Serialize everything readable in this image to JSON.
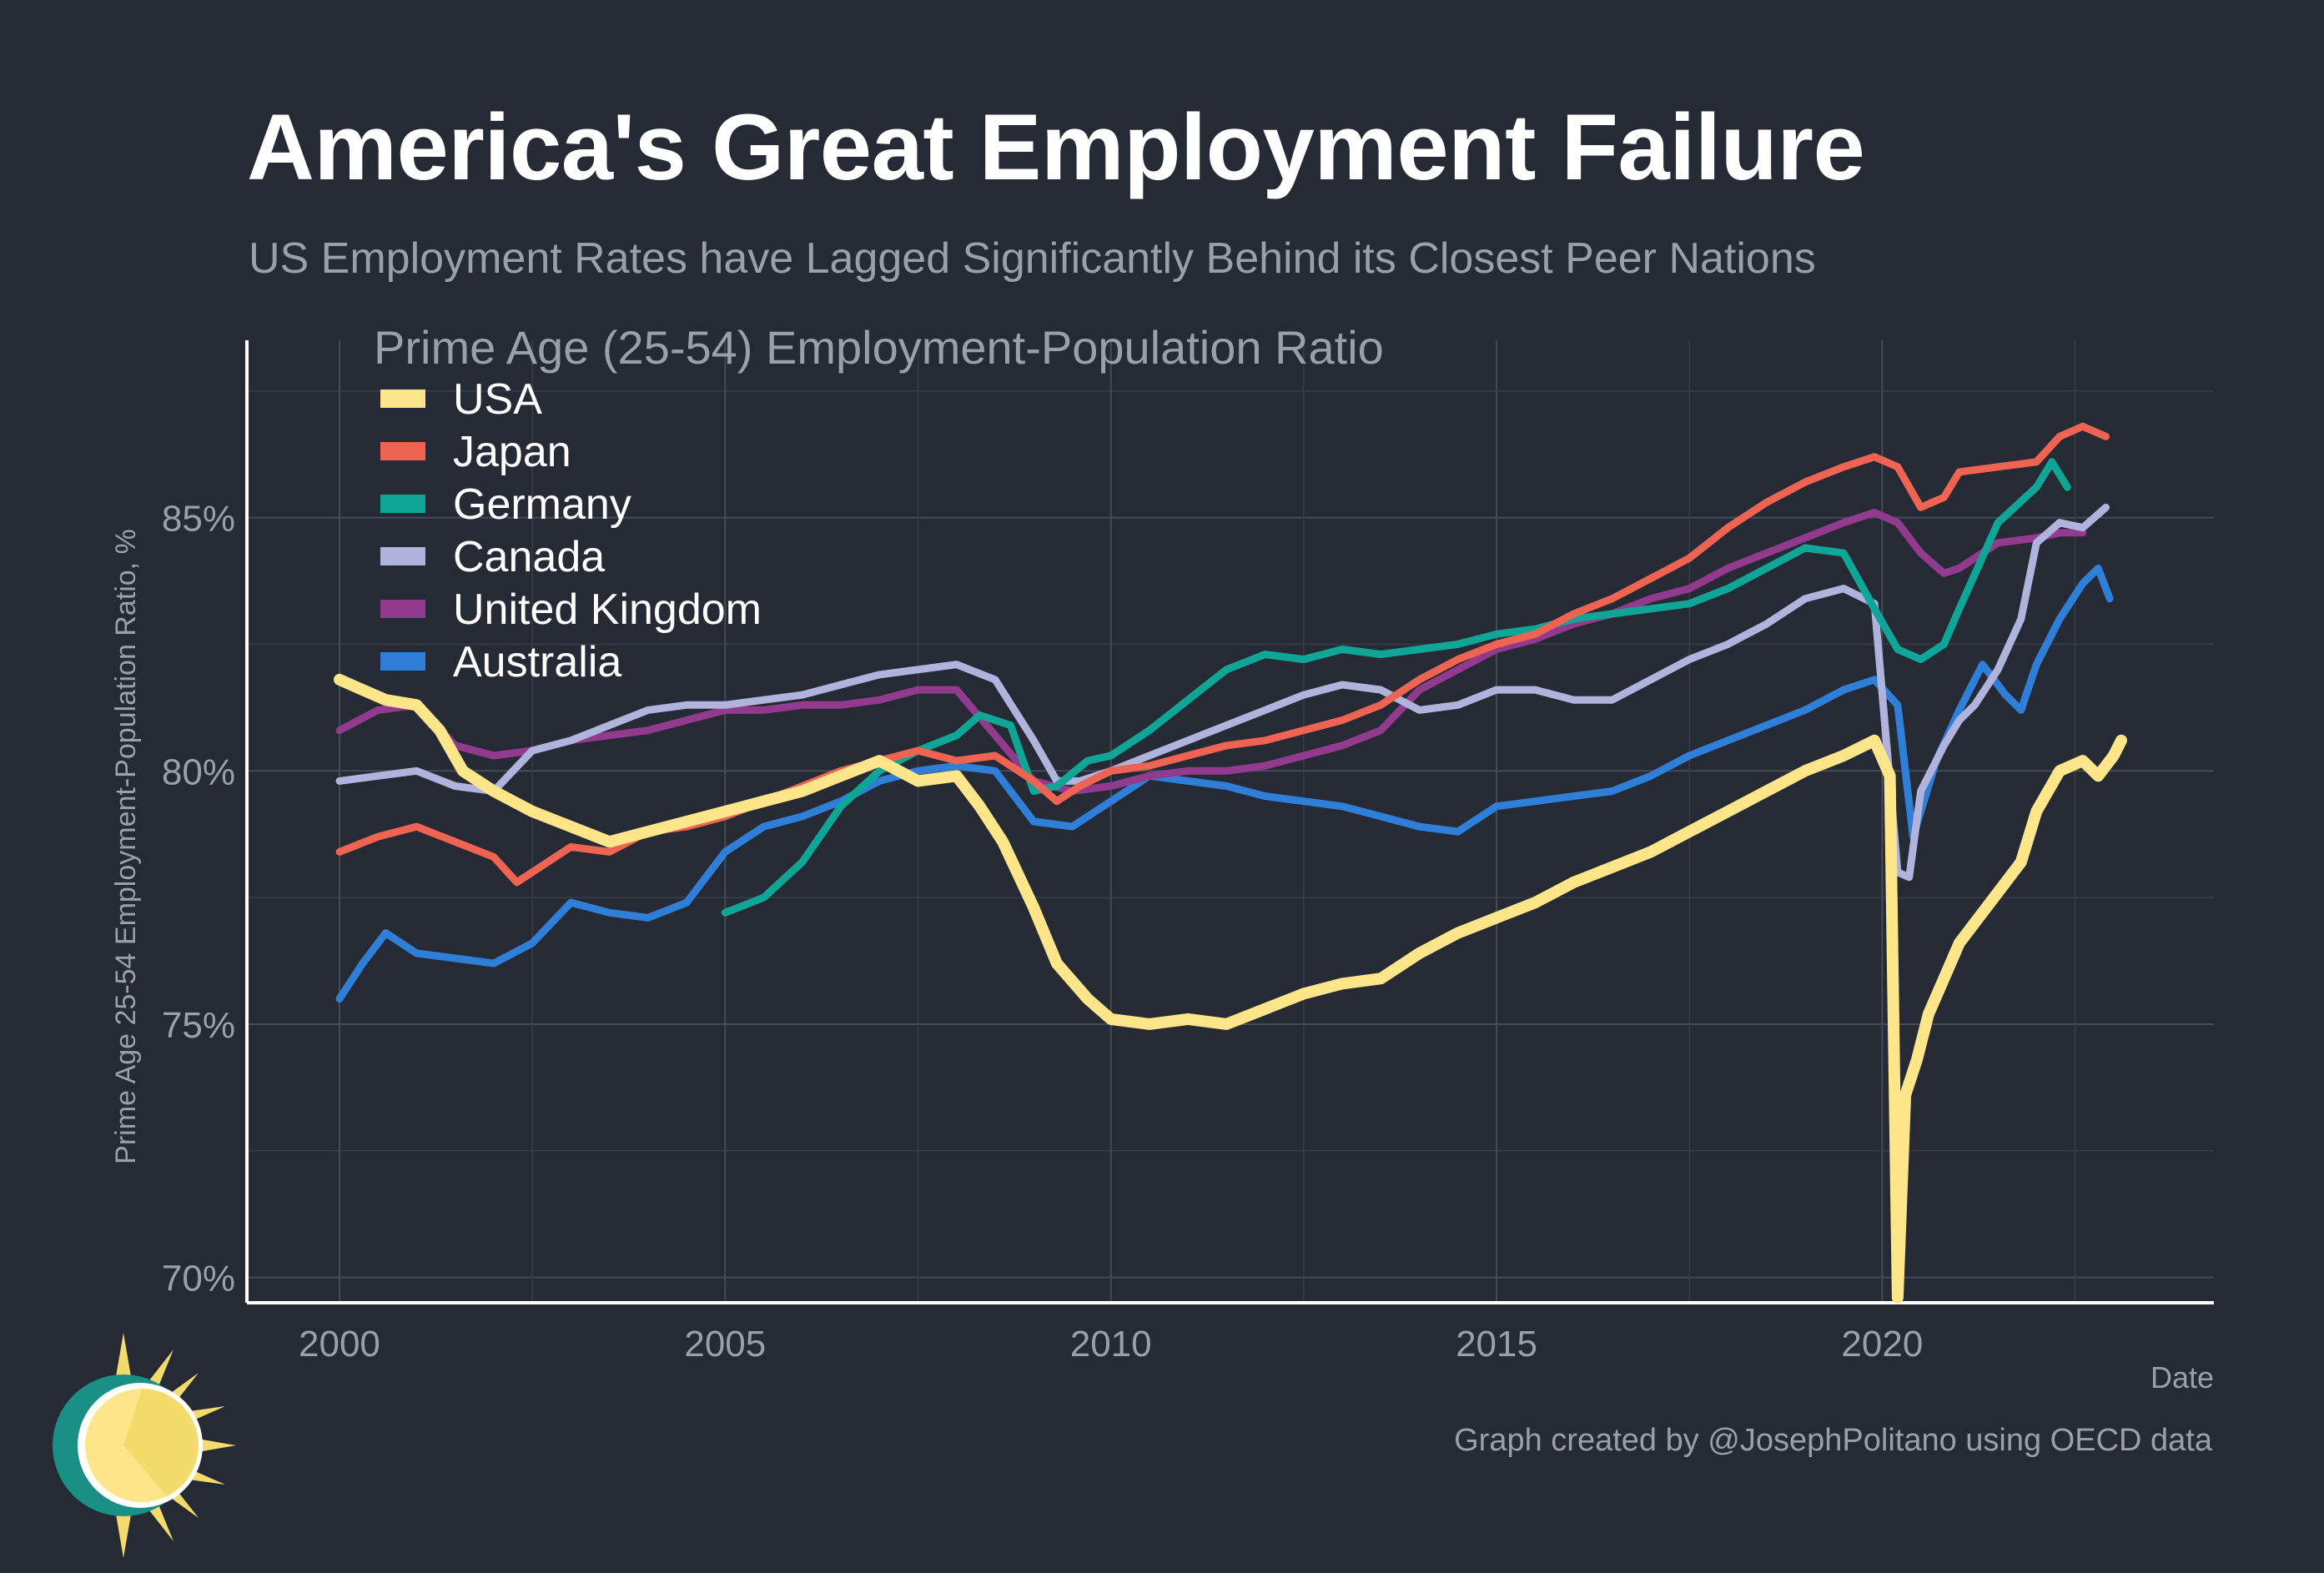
{
  "header": {
    "title": "America's Great Employment Failure",
    "subtitle": "US Employment Rates have Lagged Significantly Behind its Closest Peer Nations"
  },
  "footer": {
    "credit": "Graph created by @JosephPolitano using OECD data"
  },
  "logo": {
    "icon": "sun-logo-icon"
  },
  "chart_data": {
    "type": "line",
    "title": "Prime Age (25-54) Employment-Population Ratio",
    "xlabel": "Date",
    "ylabel": "Prime Age 25-54 Employment-Population Ratio, %",
    "xlim": [
      1998.8,
      2024.3
    ],
    "ylim": [
      69.5,
      88.5
    ],
    "x_ticks": [
      2000,
      2005,
      2010,
      2015,
      2020
    ],
    "x_tick_labels": [
      "2000",
      "2005",
      "2010",
      "2015",
      "2020"
    ],
    "y_ticks": [
      70,
      75,
      80,
      85
    ],
    "y_tick_labels": [
      "70%",
      "75%",
      "80%",
      "85%"
    ],
    "grid": true,
    "legend_position": "top-left",
    "series": [
      {
        "name": "USA",
        "color": "#fde68a",
        "x": [
          2000,
          2000.3,
          2000.6,
          2001,
          2001.3,
          2001.6,
          2002,
          2002.5,
          2003,
          2003.5,
          2004,
          2004.5,
          2005,
          2005.5,
          2006,
          2006.5,
          2007,
          2007.5,
          2008,
          2008.3,
          2008.6,
          2009,
          2009.3,
          2009.7,
          2010,
          2010.5,
          2011,
          2011.5,
          2012,
          2012.5,
          2013,
          2013.5,
          2014,
          2014.5,
          2015,
          2015.5,
          2016,
          2016.5,
          2017,
          2017.5,
          2018,
          2018.5,
          2019,
          2019.5,
          2019.9,
          2020.1,
          2020.2,
          2020.3,
          2020.45,
          2020.6,
          2020.8,
          2021,
          2021.5,
          2021.8,
          2022,
          2022.3,
          2022.6,
          2022.8,
          2023,
          2023.1
        ],
        "y": [
          81.8,
          81.6,
          81.4,
          81.3,
          80.8,
          80.0,
          79.6,
          79.2,
          78.9,
          78.6,
          78.8,
          79.0,
          79.2,
          79.4,
          79.6,
          79.9,
          80.2,
          79.8,
          79.9,
          79.3,
          78.6,
          77.3,
          76.2,
          75.5,
          75.1,
          75.0,
          75.1,
          75.0,
          75.3,
          75.6,
          75.8,
          75.9,
          76.4,
          76.8,
          77.1,
          77.4,
          77.8,
          78.1,
          78.4,
          78.8,
          79.2,
          79.6,
          80.0,
          80.3,
          80.6,
          79.9,
          69.6,
          73.6,
          74.3,
          75.2,
          75.9,
          76.6,
          77.6,
          78.2,
          79.2,
          80.0,
          80.2,
          79.9,
          80.3,
          80.6
        ]
      },
      {
        "name": "Japan",
        "color": "#ee6352",
        "x": [
          2000,
          2000.5,
          2001,
          2001.5,
          2002,
          2002.3,
          2002.7,
          2003,
          2003.5,
          2004,
          2004.5,
          2005,
          2005.5,
          2006,
          2006.5,
          2007,
          2007.5,
          2008,
          2008.5,
          2009,
          2009.3,
          2009.6,
          2010,
          2010.5,
          2011,
          2011.5,
          2012,
          2012.5,
          2013,
          2013.5,
          2014,
          2014.5,
          2015,
          2015.5,
          2016,
          2016.5,
          2017,
          2017.5,
          2018,
          2018.5,
          2019,
          2019.5,
          2019.9,
          2020.2,
          2020.5,
          2020.8,
          2021,
          2021.5,
          2022,
          2022.3,
          2022.6,
          2022.9
        ],
        "y": [
          78.4,
          78.7,
          78.9,
          78.6,
          78.3,
          77.8,
          78.2,
          78.5,
          78.4,
          78.8,
          78.9,
          79.1,
          79.4,
          79.7,
          80.0,
          80.2,
          80.4,
          80.2,
          80.3,
          79.8,
          79.4,
          79.7,
          80.0,
          80.1,
          80.3,
          80.5,
          80.6,
          80.8,
          81.0,
          81.3,
          81.8,
          82.2,
          82.5,
          82.7,
          83.1,
          83.4,
          83.8,
          84.2,
          84.8,
          85.3,
          85.7,
          86.0,
          86.2,
          86.0,
          85.2,
          85.4,
          85.9,
          86.0,
          86.1,
          86.6,
          86.8,
          86.6
        ]
      },
      {
        "name": "Germany",
        "color": "#0fa697",
        "x": [
          2005,
          2005.5,
          2006,
          2006.5,
          2007,
          2007.5,
          2008,
          2008.3,
          2008.7,
          2009,
          2009.3,
          2009.7,
          2010,
          2010.5,
          2011,
          2011.5,
          2012,
          2012.5,
          2013,
          2013.5,
          2014,
          2014.5,
          2015,
          2015.5,
          2016,
          2016.5,
          2017,
          2017.5,
          2018,
          2018.5,
          2019,
          2019.5,
          2019.9,
          2020.2,
          2020.5,
          2020.8,
          2021,
          2021.5,
          2022,
          2022.2,
          2022.4
        ],
        "y": [
          77.2,
          77.5,
          78.2,
          79.3,
          80.0,
          80.4,
          80.7,
          81.1,
          80.9,
          79.6,
          79.7,
          80.2,
          80.3,
          80.8,
          81.4,
          82.0,
          82.3,
          82.2,
          82.4,
          82.3,
          82.4,
          82.5,
          82.7,
          82.8,
          83.0,
          83.1,
          83.2,
          83.3,
          83.6,
          84.0,
          84.4,
          84.3,
          83.2,
          82.4,
          82.2,
          82.5,
          83.2,
          84.9,
          85.6,
          86.1,
          85.6
        ]
      },
      {
        "name": "Canada",
        "color": "#b0b3dc",
        "x": [
          2000,
          2000.5,
          2001,
          2001.5,
          2002,
          2002.5,
          2003,
          2003.5,
          2004,
          2004.5,
          2005,
          2005.5,
          2006,
          2006.5,
          2007,
          2007.5,
          2008,
          2008.5,
          2009,
          2009.3,
          2009.6,
          2010,
          2010.5,
          2011,
          2011.5,
          2012,
          2012.5,
          2013,
          2013.5,
          2014,
          2014.5,
          2015,
          2015.5,
          2016,
          2016.5,
          2017,
          2017.5,
          2018,
          2018.5,
          2019,
          2019.5,
          2019.9,
          2020.2,
          2020.35,
          2020.5,
          2020.8,
          2021,
          2021.2,
          2021.5,
          2021.8,
          2022,
          2022.3,
          2022.6,
          2022.9
        ],
        "y": [
          79.8,
          79.9,
          80.0,
          79.7,
          79.6,
          80.4,
          80.6,
          80.9,
          81.2,
          81.3,
          81.3,
          81.4,
          81.5,
          81.7,
          81.9,
          82.0,
          82.1,
          81.8,
          80.6,
          79.8,
          79.8,
          80.0,
          80.3,
          80.6,
          80.9,
          81.2,
          81.5,
          81.7,
          81.6,
          81.2,
          81.3,
          81.6,
          81.6,
          81.4,
          81.4,
          81.8,
          82.2,
          82.5,
          82.9,
          83.4,
          83.6,
          83.3,
          78.0,
          77.9,
          79.6,
          80.5,
          81.0,
          81.3,
          82.0,
          83.0,
          84.5,
          84.9,
          84.8,
          85.2
        ]
      },
      {
        "name": "United Kingdom",
        "color": "#923a8e",
        "x": [
          2000,
          2000.5,
          2001,
          2001.5,
          2002,
          2002.5,
          2003,
          2003.5,
          2004,
          2004.5,
          2005,
          2005.5,
          2006,
          2006.5,
          2007,
          2007.5,
          2008,
          2008.5,
          2009,
          2009.5,
          2010,
          2010.5,
          2011,
          2011.5,
          2012,
          2012.5,
          2013,
          2013.5,
          2014,
          2014.5,
          2015,
          2015.5,
          2016,
          2016.5,
          2017,
          2017.5,
          2018,
          2018.5,
          2019,
          2019.5,
          2019.9,
          2020.2,
          2020.5,
          2020.8,
          2021,
          2021.5,
          2022,
          2022.3,
          2022.6
        ],
        "y": [
          80.8,
          81.2,
          81.3,
          80.5,
          80.3,
          80.4,
          80.6,
          80.7,
          80.8,
          81.0,
          81.2,
          81.2,
          81.3,
          81.3,
          81.4,
          81.6,
          81.6,
          80.7,
          79.8,
          79.6,
          79.7,
          79.9,
          80.0,
          80.0,
          80.1,
          80.3,
          80.5,
          80.8,
          81.6,
          82.0,
          82.4,
          82.6,
          82.9,
          83.1,
          83.4,
          83.6,
          84.0,
          84.3,
          84.6,
          84.9,
          85.1,
          84.9,
          84.3,
          83.9,
          84.0,
          84.5,
          84.6,
          84.7,
          84.7
        ]
      },
      {
        "name": "Australia",
        "color": "#2f7fd9",
        "x": [
          2000,
          2000.3,
          2000.6,
          2001,
          2001.5,
          2002,
          2002.5,
          2003,
          2003.5,
          2004,
          2004.5,
          2005,
          2005.5,
          2006,
          2006.5,
          2007,
          2007.5,
          2008,
          2008.5,
          2009,
          2009.5,
          2010,
          2010.5,
          2011,
          2011.5,
          2012,
          2012.5,
          2013,
          2013.5,
          2014,
          2014.5,
          2015,
          2015.5,
          2016,
          2016.5,
          2017,
          2017.5,
          2018,
          2018.5,
          2019,
          2019.5,
          2019.9,
          2020.2,
          2020.4,
          2020.7,
          2021,
          2021.3,
          2021.6,
          2021.8,
          2022,
          2022.3,
          2022.6,
          2022.8,
          2022.95
        ],
        "y": [
          75.5,
          76.2,
          76.8,
          76.4,
          76.3,
          76.2,
          76.6,
          77.4,
          77.2,
          77.1,
          77.4,
          78.4,
          78.9,
          79.1,
          79.4,
          79.8,
          80.0,
          80.1,
          80.0,
          79.0,
          78.9,
          79.4,
          79.9,
          79.8,
          79.7,
          79.5,
          79.4,
          79.3,
          79.1,
          78.9,
          78.8,
          79.3,
          79.4,
          79.5,
          79.6,
          79.9,
          80.3,
          80.6,
          80.9,
          81.2,
          81.6,
          81.8,
          81.3,
          78.7,
          80.2,
          81.2,
          82.1,
          81.5,
          81.2,
          82.1,
          83.0,
          83.7,
          84.0,
          83.4
        ]
      }
    ]
  }
}
